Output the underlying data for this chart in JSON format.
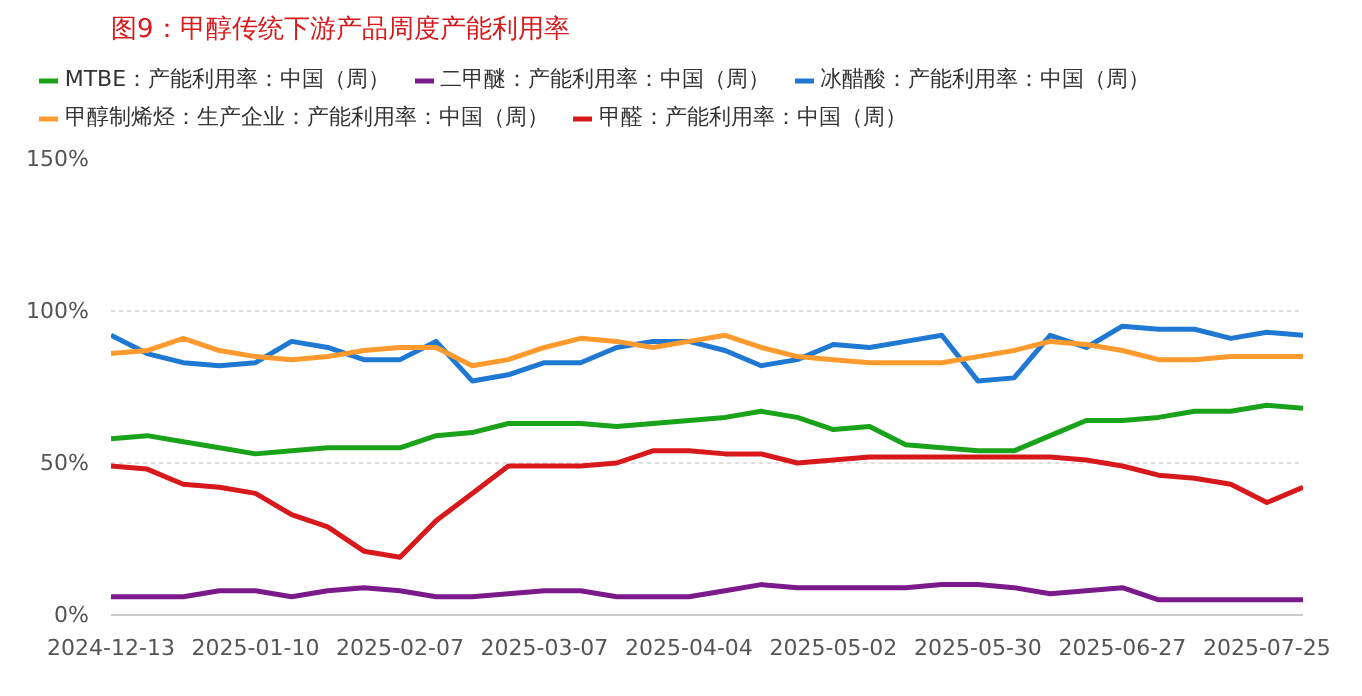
{
  "chart_data": {
    "type": "line",
    "title": "图9：甲醇传统下游产品周度产能利用率",
    "x": [
      "2024-12-13",
      "2024-12-20",
      "2024-12-27",
      "2025-01-03",
      "2025-01-10",
      "2025-01-17",
      "2025-01-24",
      "2025-01-31",
      "2025-02-07",
      "2025-02-14",
      "2025-02-21",
      "2025-02-28",
      "2025-03-07",
      "2025-03-14",
      "2025-03-21",
      "2025-03-28",
      "2025-04-04",
      "2025-04-11",
      "2025-04-18",
      "2025-04-25",
      "2025-05-02",
      "2025-05-09",
      "2025-05-16",
      "2025-05-23",
      "2025-05-30",
      "2025-06-06",
      "2025-06-13",
      "2025-06-20",
      "2025-06-27",
      "2025-07-04",
      "2025-07-11",
      "2025-07-18",
      "2025-07-25",
      "2025-08-01"
    ],
    "series": [
      {
        "name": "MTBE：产能利用率：中国（周）",
        "color": "#1aa31a",
        "values": [
          58,
          59,
          57,
          55,
          53,
          54,
          55,
          55,
          55,
          59,
          60,
          63,
          63,
          63,
          62,
          63,
          64,
          65,
          67,
          65,
          61,
          62,
          56,
          55,
          54,
          54,
          59,
          64,
          64,
          65,
          67,
          67,
          69,
          68
        ]
      },
      {
        "name": "二甲醚：产能利用率：中国（周）",
        "color": "#7b1a8a",
        "values": [
          6,
          6,
          6,
          8,
          8,
          6,
          8,
          9,
          8,
          6,
          6,
          7,
          8,
          8,
          6,
          6,
          6,
          8,
          10,
          9,
          9,
          9,
          9,
          10,
          10,
          9,
          7,
          8,
          9,
          5,
          5,
          5,
          5,
          5
        ]
      },
      {
        "name": "冰醋酸：产能利用率：中国（周）",
        "color": "#1f78d1",
        "values": [
          92,
          86,
          83,
          82,
          83,
          90,
          88,
          84,
          84,
          90,
          77,
          79,
          83,
          83,
          88,
          90,
          90,
          87,
          82,
          84,
          89,
          88,
          90,
          92,
          77,
          78,
          92,
          88,
          95,
          94,
          94,
          91,
          93,
          92
        ]
      },
      {
        "name": "甲醇制烯烃：生产企业：产能利用率：中国（周）",
        "color": "#ff9a2e",
        "values": [
          86,
          87,
          91,
          87,
          85,
          84,
          85,
          87,
          88,
          88,
          82,
          84,
          88,
          91,
          90,
          88,
          90,
          92,
          88,
          85,
          84,
          83,
          83,
          83,
          85,
          87,
          90,
          89,
          87,
          84,
          84,
          85,
          85,
          85
        ]
      },
      {
        "name": "甲醛：产能利用率：中国（周）",
        "color": "#d7191c",
        "values": [
          49,
          48,
          43,
          42,
          40,
          33,
          29,
          21,
          19,
          31,
          40,
          49,
          49,
          49,
          50,
          54,
          54,
          53,
          53,
          50,
          51,
          52,
          52,
          52,
          52,
          52,
          52,
          51,
          49,
          46,
          45,
          43,
          37,
          42
        ]
      }
    ],
    "xlim": [
      "2024-12-13",
      "2025-08-01"
    ],
    "xticks": [
      "2024-12-13",
      "2025-01-10",
      "2025-02-07",
      "2025-03-07",
      "2025-04-04",
      "2025-05-02",
      "2025-05-30",
      "2025-06-27",
      "2025-07-25"
    ],
    "ylim": [
      0,
      150
    ],
    "yticks": [
      {
        "value": 0,
        "label": "0%"
      },
      {
        "value": 50,
        "label": "50%"
      },
      {
        "value": 100,
        "label": "100%"
      },
      {
        "value": 150,
        "label": "150%"
      }
    ],
    "grid": "y",
    "legend": "top",
    "marker": "none",
    "line_style": "solid"
  }
}
